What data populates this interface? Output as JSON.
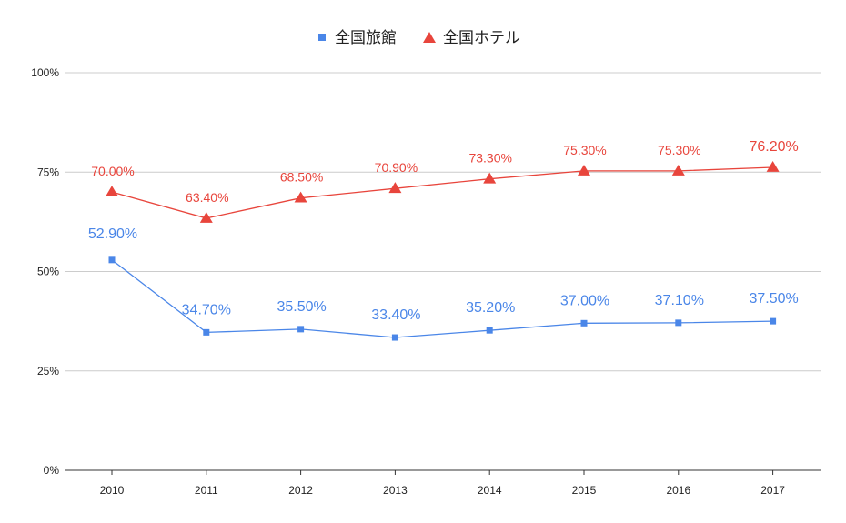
{
  "chart_data": {
    "type": "line",
    "title": "",
    "xlabel": "",
    "ylabel": "",
    "categories": [
      "2010",
      "2011",
      "2012",
      "2013",
      "2014",
      "2015",
      "2016",
      "2017"
    ],
    "ylim": [
      0,
      100
    ],
    "yticks": [
      {
        "value": 0,
        "label": "0%"
      },
      {
        "value": 25,
        "label": "25%"
      },
      {
        "value": 50,
        "label": "50%"
      },
      {
        "value": 75,
        "label": "75%"
      },
      {
        "value": 100,
        "label": "100%"
      }
    ],
    "grid": true,
    "legend_position": "top",
    "series": [
      {
        "name": "全国旅館",
        "color": "#4a86e8",
        "marker": "square",
        "values": [
          52.9,
          34.7,
          35.5,
          33.4,
          35.2,
          37.0,
          37.1,
          37.5
        ],
        "labels": [
          "52.90%",
          "34.70%",
          "35.50%",
          "33.40%",
          "35.20%",
          "37.00%",
          "37.10%",
          "37.50%"
        ]
      },
      {
        "name": "全国ホテル",
        "color": "#e8453c",
        "marker": "triangle",
        "values": [
          70.0,
          63.4,
          68.5,
          70.9,
          73.3,
          75.3,
          75.3,
          76.2
        ],
        "labels": [
          "70.00%",
          "63.40%",
          "68.50%",
          "70.90%",
          "73.30%",
          "75.30%",
          "75.30%",
          "76.20%"
        ]
      }
    ]
  }
}
